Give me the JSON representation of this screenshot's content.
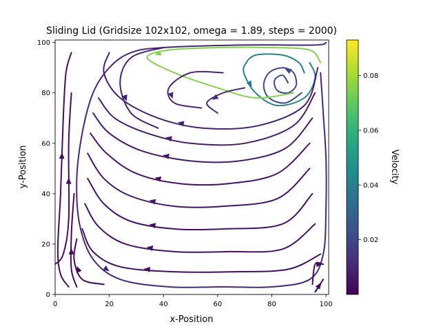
{
  "chart_data": {
    "type": "streamplot",
    "title": "Sliding Lid (Gridsize 102x102, omega = 1.89, steps = 2000)",
    "xlabel": "x-Position",
    "ylabel": "y-Position",
    "xlim": [
      0,
      101
    ],
    "ylim": [
      0,
      101
    ],
    "xticks": [
      0,
      20,
      40,
      60,
      80,
      100
    ],
    "yticks": [
      0,
      20,
      40,
      60,
      80,
      100
    ],
    "grid": false,
    "colorbar": {
      "label": "Velocity",
      "colormap": "viridis",
      "range": [
        0,
        0.093
      ],
      "ticks": [
        0.02,
        0.04,
        0.06,
        0.08
      ],
      "tick_labels": [
        "0.02",
        "0.04",
        "0.06",
        "0.08"
      ]
    },
    "vortex_center": [
      84,
      84
    ],
    "streamlines": [
      {
        "points": [
          [
            86,
            84
          ],
          [
            84,
            87
          ],
          [
            81,
            85
          ],
          [
            82,
            81
          ],
          [
            86,
            80
          ],
          [
            89,
            83
          ],
          [
            88,
            88
          ],
          [
            84,
            90
          ],
          [
            79,
            88
          ],
          [
            77,
            83
          ],
          [
            79,
            78
          ],
          [
            85,
            76
          ],
          [
            91,
            80
          ]
        ],
        "speed": 0.02
      },
      {
        "points": [
          [
            92,
            88
          ],
          [
            90,
            92
          ],
          [
            84,
            95
          ],
          [
            74,
            95
          ],
          [
            70,
            91
          ],
          [
            70,
            87
          ],
          [
            74,
            80
          ],
          [
            82,
            75
          ],
          [
            92,
            78
          ],
          [
            96,
            86
          ],
          [
            94,
            92
          ]
        ],
        "speed": 0.04
      },
      {
        "points": [
          [
            98,
            92
          ],
          [
            94,
            97
          ],
          [
            80,
            98
          ],
          [
            60,
            98
          ],
          [
            42,
            97
          ],
          [
            34,
            94
          ],
          [
            44,
            88
          ],
          [
            60,
            82
          ],
          [
            74,
            78
          ],
          [
            88,
            80
          ]
        ],
        "speed": 0.075
      },
      {
        "points": [
          [
            100,
            100
          ],
          [
            96,
            99
          ],
          [
            70,
            99
          ],
          [
            40,
            98
          ],
          [
            28,
            96
          ],
          [
            20,
            90
          ],
          [
            14,
            80
          ],
          [
            10,
            64
          ],
          [
            8,
            46
          ],
          [
            9,
            28
          ],
          [
            14,
            14
          ],
          [
            24,
            6
          ],
          [
            42,
            3
          ],
          [
            62,
            3
          ],
          [
            80,
            3
          ],
          [
            94,
            6
          ],
          [
            99,
            16
          ],
          [
            100,
            34
          ],
          [
            100,
            54
          ],
          [
            99,
            72
          ],
          [
            98,
            88
          ]
        ],
        "speed": 0.01
      },
      {
        "points": [
          [
            97,
            90
          ],
          [
            92,
            75
          ],
          [
            75,
            67
          ],
          [
            55,
            66
          ],
          [
            38,
            70
          ],
          [
            24,
            78
          ],
          [
            18,
            88
          ],
          [
            20,
            96
          ]
        ],
        "speed": 0.008
      },
      {
        "points": [
          [
            96,
            80
          ],
          [
            88,
            67
          ],
          [
            70,
            60
          ],
          [
            50,
            60
          ],
          [
            34,
            64
          ],
          [
            22,
            70
          ],
          [
            16,
            78
          ]
        ],
        "speed": 0.007
      },
      {
        "points": [
          [
            95,
            70
          ],
          [
            85,
            58
          ],
          [
            68,
            53
          ],
          [
            50,
            53
          ],
          [
            32,
            57
          ],
          [
            20,
            64
          ],
          [
            14,
            72
          ]
        ],
        "speed": 0.006
      },
      {
        "points": [
          [
            94,
            60
          ],
          [
            82,
            48
          ],
          [
            64,
            44
          ],
          [
            46,
            44
          ],
          [
            30,
            48
          ],
          [
            19,
            56
          ],
          [
            13,
            64
          ]
        ],
        "speed": 0.005
      },
      {
        "points": [
          [
            94,
            50
          ],
          [
            82,
            38
          ],
          [
            62,
            35
          ],
          [
            44,
            35
          ],
          [
            28,
            39
          ],
          [
            18,
            46
          ],
          [
            12,
            56
          ]
        ],
        "speed": 0.005
      },
      {
        "points": [
          [
            95,
            40
          ],
          [
            84,
            28
          ],
          [
            62,
            26
          ],
          [
            44,
            26
          ],
          [
            28,
            29
          ],
          [
            18,
            36
          ],
          [
            12,
            46
          ]
        ],
        "speed": 0.004
      },
      {
        "points": [
          [
            96,
            28
          ],
          [
            84,
            18
          ],
          [
            64,
            17
          ],
          [
            44,
            17
          ],
          [
            26,
            20
          ],
          [
            16,
            27
          ],
          [
            11,
            36
          ]
        ],
        "speed": 0.004
      },
      {
        "points": [
          [
            98,
            16
          ],
          [
            86,
            10
          ],
          [
            66,
            9
          ],
          [
            44,
            9
          ],
          [
            24,
            11
          ],
          [
            14,
            17
          ],
          [
            10,
            26
          ]
        ],
        "speed": 0.003
      },
      {
        "points": [
          [
            40,
            98
          ],
          [
            28,
            94
          ],
          [
            24,
            84
          ],
          [
            28,
            72
          ],
          [
            38,
            66
          ]
        ],
        "speed": 0.008
      },
      {
        "points": [
          [
            62,
            88
          ],
          [
            50,
            88
          ],
          [
            42,
            82
          ],
          [
            44,
            76
          ],
          [
            54,
            74
          ]
        ],
        "speed": 0.01
      },
      {
        "points": [
          [
            70,
            82
          ],
          [
            62,
            80
          ],
          [
            56,
            76
          ],
          [
            60,
            72
          ]
        ],
        "speed": 0.012
      },
      {
        "points": [
          [
            5,
            3
          ],
          [
            2,
            8
          ],
          [
            1,
            18
          ],
          [
            2,
            40
          ],
          [
            3,
            70
          ],
          [
            4,
            88
          ],
          [
            6,
            96
          ]
        ],
        "speed": 0.003
      },
      {
        "points": [
          [
            0,
            12
          ],
          [
            3,
            16
          ],
          [
            5,
            30
          ],
          [
            5,
            60
          ],
          [
            6,
            80
          ]
        ],
        "speed": 0.003
      },
      {
        "points": [
          [
            8,
            3
          ],
          [
            6,
            10
          ],
          [
            6,
            24
          ],
          [
            7,
            40
          ]
        ],
        "speed": 0.002
      },
      {
        "points": [
          [
            18,
            4
          ],
          [
            10,
            6
          ],
          [
            7,
            14
          ],
          [
            8,
            22
          ]
        ],
        "speed": 0.002
      },
      {
        "points": [
          [
            98,
            4
          ],
          [
            96,
            1
          ],
          [
            99,
            6
          ]
        ],
        "speed": 0.002
      },
      {
        "points": [
          [
            95,
            4
          ],
          [
            96,
            12
          ],
          [
            99,
            12
          ]
        ],
        "speed": 0.002
      }
    ]
  }
}
